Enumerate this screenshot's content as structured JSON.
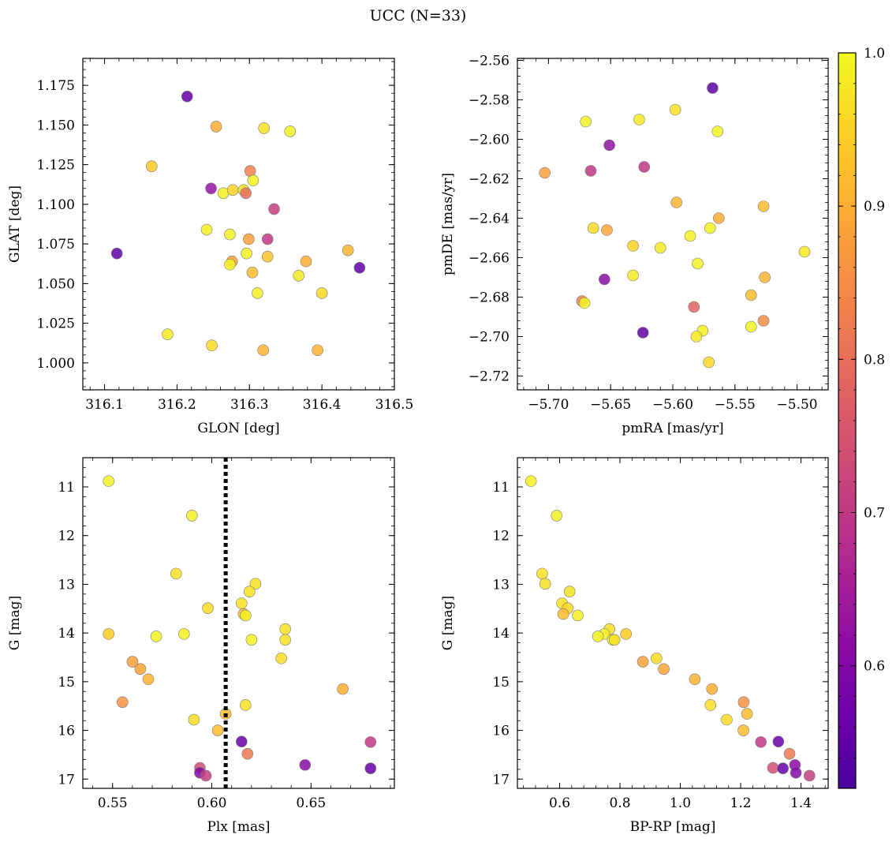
{
  "figure": {
    "suptitle": "UCC (N=33)"
  },
  "colorbar": {
    "colormap": "plasma",
    "min": 0.52,
    "max": 1.0,
    "ticks": [
      0.6,
      0.7,
      0.8,
      0.9,
      1.0
    ],
    "tick_labels": [
      "0.6",
      "0.7",
      "0.8",
      "0.9",
      "1.0"
    ]
  },
  "chart_data": [
    {
      "type": "scatter",
      "panel": "top-left",
      "xlabel": "GLON [deg]",
      "ylabel": "GLAT [deg]",
      "xlim": [
        316.07,
        316.5
      ],
      "ylim": [
        0.983,
        1.192
      ],
      "xticks": [
        316.1,
        316.2,
        316.3,
        316.4,
        316.5
      ],
      "xtick_labels": [
        "316.1",
        "316.2",
        "316.3",
        "316.4",
        "316.5"
      ],
      "yticks": [
        1.0,
        1.025,
        1.05,
        1.075,
        1.1,
        1.125,
        1.15,
        1.175
      ],
      "ytick_labels": [
        "1.000",
        "1.025",
        "1.050",
        "1.075",
        "1.100",
        "1.125",
        "1.150",
        "1.175"
      ],
      "y_inverted": false,
      "points": [
        {
          "x": 316.117,
          "y": 1.069,
          "c": 0.55
        },
        {
          "x": 316.214,
          "y": 1.168,
          "c": 0.56
        },
        {
          "x": 316.254,
          "y": 1.149,
          "c": 0.9
        },
        {
          "x": 316.165,
          "y": 1.124,
          "c": 0.94
        },
        {
          "x": 316.32,
          "y": 1.148,
          "c": 0.97
        },
        {
          "x": 316.356,
          "y": 1.146,
          "c": 0.99
        },
        {
          "x": 316.301,
          "y": 1.121,
          "c": 0.83
        },
        {
          "x": 316.305,
          "y": 1.115,
          "c": 0.99
        },
        {
          "x": 316.247,
          "y": 1.11,
          "c": 0.63
        },
        {
          "x": 316.264,
          "y": 1.107,
          "c": 0.99
        },
        {
          "x": 316.277,
          "y": 1.109,
          "c": 0.95
        },
        {
          "x": 316.292,
          "y": 1.109,
          "c": 0.97
        },
        {
          "x": 316.295,
          "y": 1.107,
          "c": 0.8
        },
        {
          "x": 316.334,
          "y": 1.097,
          "c": 0.71
        },
        {
          "x": 316.241,
          "y": 1.084,
          "c": 0.99
        },
        {
          "x": 316.273,
          "y": 1.081,
          "c": 0.99
        },
        {
          "x": 316.299,
          "y": 1.078,
          "c": 0.88
        },
        {
          "x": 316.325,
          "y": 1.078,
          "c": 0.7
        },
        {
          "x": 316.296,
          "y": 1.069,
          "c": 0.99
        },
        {
          "x": 316.276,
          "y": 1.064,
          "c": 0.88
        },
        {
          "x": 316.273,
          "y": 1.062,
          "c": 0.99
        },
        {
          "x": 316.325,
          "y": 1.067,
          "c": 0.93
        },
        {
          "x": 316.378,
          "y": 1.064,
          "c": 0.9
        },
        {
          "x": 316.436,
          "y": 1.071,
          "c": 0.91
        },
        {
          "x": 316.452,
          "y": 1.06,
          "c": 0.55
        },
        {
          "x": 316.304,
          "y": 1.057,
          "c": 0.92
        },
        {
          "x": 316.368,
          "y": 1.055,
          "c": 0.98
        },
        {
          "x": 316.311,
          "y": 1.044,
          "c": 0.99
        },
        {
          "x": 316.4,
          "y": 1.044,
          "c": 0.96
        },
        {
          "x": 316.187,
          "y": 1.018,
          "c": 0.98
        },
        {
          "x": 316.248,
          "y": 1.011,
          "c": 0.96
        },
        {
          "x": 316.319,
          "y": 1.008,
          "c": 0.91
        },
        {
          "x": 316.394,
          "y": 1.008,
          "c": 0.91
        }
      ]
    },
    {
      "type": "scatter",
      "panel": "top-right",
      "xlabel": "pmRA [mas/yr]",
      "ylabel": "pmDE [mas/yr]",
      "xlim": [
        -5.725,
        -5.475
      ],
      "ylim": [
        -2.727,
        -2.559
      ],
      "xticks": [
        -5.7,
        -5.65,
        -5.6,
        -5.55,
        -5.5
      ],
      "xtick_labels": [
        "−5.70",
        "−5.65",
        "−5.60",
        "−5.55",
        "−5.50"
      ],
      "yticks": [
        -2.72,
        -2.7,
        -2.68,
        -2.66,
        -2.64,
        -2.62,
        -2.6,
        -2.58,
        -2.56
      ],
      "ytick_labels": [
        "−2.72",
        "−2.70",
        "−2.68",
        "−2.66",
        "−2.64",
        "−2.62",
        "−2.60",
        "−2.58",
        "−2.56"
      ],
      "y_inverted": false,
      "points": [
        {
          "x": -5.568,
          "y": -2.574,
          "c": 0.55
        },
        {
          "x": -5.598,
          "y": -2.585,
          "c": 0.97
        },
        {
          "x": -5.67,
          "y": -2.591,
          "c": 0.99
        },
        {
          "x": -5.627,
          "y": -2.59,
          "c": 0.98
        },
        {
          "x": -5.564,
          "y": -2.596,
          "c": 0.99
        },
        {
          "x": -5.651,
          "y": -2.603,
          "c": 0.62
        },
        {
          "x": -5.703,
          "y": -2.617,
          "c": 0.88
        },
        {
          "x": -5.666,
          "y": -2.616,
          "c": 0.7
        },
        {
          "x": -5.623,
          "y": -2.614,
          "c": 0.7
        },
        {
          "x": -5.597,
          "y": -2.632,
          "c": 0.91
        },
        {
          "x": -5.527,
          "y": -2.634,
          "c": 0.92
        },
        {
          "x": -5.563,
          "y": -2.64,
          "c": 0.9
        },
        {
          "x": -5.664,
          "y": -2.645,
          "c": 0.96
        },
        {
          "x": -5.653,
          "y": -2.646,
          "c": 0.89
        },
        {
          "x": -5.57,
          "y": -2.645,
          "c": 0.99
        },
        {
          "x": -5.586,
          "y": -2.649,
          "c": 0.99
        },
        {
          "x": -5.632,
          "y": -2.654,
          "c": 0.95
        },
        {
          "x": -5.61,
          "y": -2.655,
          "c": 0.98
        },
        {
          "x": -5.494,
          "y": -2.657,
          "c": 0.98
        },
        {
          "x": -5.58,
          "y": -2.663,
          "c": 0.99
        },
        {
          "x": -5.632,
          "y": -2.669,
          "c": 0.98
        },
        {
          "x": -5.526,
          "y": -2.67,
          "c": 0.91
        },
        {
          "x": -5.655,
          "y": -2.671,
          "c": 0.61
        },
        {
          "x": -5.673,
          "y": -2.682,
          "c": 0.83
        },
        {
          "x": -5.671,
          "y": -2.683,
          "c": 0.99
        },
        {
          "x": -5.537,
          "y": -2.679,
          "c": 0.92
        },
        {
          "x": -5.583,
          "y": -2.685,
          "c": 0.78
        },
        {
          "x": -5.527,
          "y": -2.692,
          "c": 0.85
        },
        {
          "x": -5.537,
          "y": -2.695,
          "c": 0.99
        },
        {
          "x": -5.576,
          "y": -2.697,
          "c": 0.99
        },
        {
          "x": -5.624,
          "y": -2.698,
          "c": 0.55
        },
        {
          "x": -5.581,
          "y": -2.7,
          "c": 0.98
        },
        {
          "x": -5.571,
          "y": -2.713,
          "c": 0.96
        }
      ]
    },
    {
      "type": "scatter",
      "panel": "bottom-left",
      "xlabel": "Plx [mas]",
      "ylabel": "G [mag]",
      "xlim": [
        0.535,
        0.692
      ],
      "ylim": [
        17.19,
        10.4
      ],
      "xticks": [
        0.55,
        0.6,
        0.65
      ],
      "xtick_labels": [
        "0.55",
        "0.60",
        "0.65"
      ],
      "yticks": [
        11,
        12,
        13,
        14,
        15,
        16,
        17
      ],
      "ytick_labels": [
        "11",
        "12",
        "13",
        "14",
        "15",
        "16",
        "17"
      ],
      "y_inverted": true,
      "vline": {
        "x": 0.607,
        "style": "dotted"
      },
      "points": [
        {
          "x": 0.548,
          "y": 10.88,
          "c": 0.99
        },
        {
          "x": 0.59,
          "y": 11.59,
          "c": 0.99
        },
        {
          "x": 0.582,
          "y": 12.78,
          "c": 0.97
        },
        {
          "x": 0.622,
          "y": 12.99,
          "c": 0.97
        },
        {
          "x": 0.619,
          "y": 13.15,
          "c": 0.97
        },
        {
          "x": 0.615,
          "y": 13.39,
          "c": 0.97
        },
        {
          "x": 0.598,
          "y": 13.49,
          "c": 0.96
        },
        {
          "x": 0.616,
          "y": 13.61,
          "c": 0.92
        },
        {
          "x": 0.617,
          "y": 13.64,
          "c": 0.99
        },
        {
          "x": 0.637,
          "y": 13.92,
          "c": 0.97
        },
        {
          "x": 0.548,
          "y": 14.02,
          "c": 0.94
        },
        {
          "x": 0.586,
          "y": 14.02,
          "c": 0.99
        },
        {
          "x": 0.572,
          "y": 14.07,
          "c": 0.99
        },
        {
          "x": 0.62,
          "y": 14.14,
          "c": 0.99
        },
        {
          "x": 0.637,
          "y": 14.14,
          "c": 0.97
        },
        {
          "x": 0.635,
          "y": 14.52,
          "c": 0.96
        },
        {
          "x": 0.56,
          "y": 14.59,
          "c": 0.88
        },
        {
          "x": 0.564,
          "y": 14.74,
          "c": 0.89
        },
        {
          "x": 0.568,
          "y": 14.95,
          "c": 0.91
        },
        {
          "x": 0.666,
          "y": 15.15,
          "c": 0.9
        },
        {
          "x": 0.555,
          "y": 15.42,
          "c": 0.86
        },
        {
          "x": 0.617,
          "y": 15.48,
          "c": 0.97
        },
        {
          "x": 0.607,
          "y": 15.66,
          "c": 0.92
        },
        {
          "x": 0.591,
          "y": 15.78,
          "c": 0.96
        },
        {
          "x": 0.603,
          "y": 16.0,
          "c": 0.92
        },
        {
          "x": 0.615,
          "y": 16.23,
          "c": 0.56
        },
        {
          "x": 0.68,
          "y": 16.24,
          "c": 0.7
        },
        {
          "x": 0.618,
          "y": 16.48,
          "c": 0.82
        },
        {
          "x": 0.647,
          "y": 16.71,
          "c": 0.61
        },
        {
          "x": 0.594,
          "y": 16.77,
          "c": 0.74
        },
        {
          "x": 0.68,
          "y": 16.78,
          "c": 0.56
        },
        {
          "x": 0.594,
          "y": 16.87,
          "c": 0.6
        },
        {
          "x": 0.597,
          "y": 16.93,
          "c": 0.71
        }
      ]
    },
    {
      "type": "scatter",
      "panel": "bottom-right",
      "xlabel": "BP-RP [mag]",
      "ylabel": "G [mag]",
      "xlim": [
        0.46,
        1.49
      ],
      "ylim": [
        17.19,
        10.4
      ],
      "xticks": [
        0.6,
        0.8,
        1.0,
        1.2,
        1.4
      ],
      "xtick_labels": [
        "0.6",
        "0.8",
        "1.0",
        "1.2",
        "1.4"
      ],
      "yticks": [
        11,
        12,
        13,
        14,
        15,
        16,
        17
      ],
      "ytick_labels": [
        "11",
        "12",
        "13",
        "14",
        "15",
        "16",
        "17"
      ],
      "y_inverted": true,
      "points": [
        {
          "x": 0.505,
          "y": 10.88,
          "c": 0.99
        },
        {
          "x": 0.59,
          "y": 11.59,
          "c": 0.99
        },
        {
          "x": 0.542,
          "y": 12.78,
          "c": 0.97
        },
        {
          "x": 0.552,
          "y": 12.99,
          "c": 0.97
        },
        {
          "x": 0.633,
          "y": 13.15,
          "c": 0.97
        },
        {
          "x": 0.608,
          "y": 13.39,
          "c": 0.97
        },
        {
          "x": 0.627,
          "y": 13.49,
          "c": 0.96
        },
        {
          "x": 0.612,
          "y": 13.61,
          "c": 0.92
        },
        {
          "x": 0.66,
          "y": 13.64,
          "c": 0.99
        },
        {
          "x": 0.765,
          "y": 13.92,
          "c": 0.97
        },
        {
          "x": 0.82,
          "y": 14.02,
          "c": 0.94
        },
        {
          "x": 0.748,
          "y": 14.02,
          "c": 0.99
        },
        {
          "x": 0.727,
          "y": 14.07,
          "c": 0.99
        },
        {
          "x": 0.776,
          "y": 14.14,
          "c": 0.99
        },
        {
          "x": 0.782,
          "y": 14.14,
          "c": 0.97
        },
        {
          "x": 0.921,
          "y": 14.52,
          "c": 0.96
        },
        {
          "x": 0.876,
          "y": 14.59,
          "c": 0.88
        },
        {
          "x": 0.945,
          "y": 14.74,
          "c": 0.89
        },
        {
          "x": 1.048,
          "y": 14.95,
          "c": 0.91
        },
        {
          "x": 1.105,
          "y": 15.15,
          "c": 0.9
        },
        {
          "x": 1.21,
          "y": 15.42,
          "c": 0.86
        },
        {
          "x": 1.1,
          "y": 15.48,
          "c": 0.97
        },
        {
          "x": 1.221,
          "y": 15.66,
          "c": 0.92
        },
        {
          "x": 1.154,
          "y": 15.78,
          "c": 0.96
        },
        {
          "x": 1.209,
          "y": 16.0,
          "c": 0.92
        },
        {
          "x": 1.325,
          "y": 16.23,
          "c": 0.56
        },
        {
          "x": 1.267,
          "y": 16.24,
          "c": 0.7
        },
        {
          "x": 1.362,
          "y": 16.48,
          "c": 0.82
        },
        {
          "x": 1.38,
          "y": 16.71,
          "c": 0.61
        },
        {
          "x": 1.307,
          "y": 16.77,
          "c": 0.74
        },
        {
          "x": 1.34,
          "y": 16.78,
          "c": 0.56
        },
        {
          "x": 1.383,
          "y": 16.87,
          "c": 0.6
        },
        {
          "x": 1.428,
          "y": 16.93,
          "c": 0.71
        }
      ]
    }
  ]
}
